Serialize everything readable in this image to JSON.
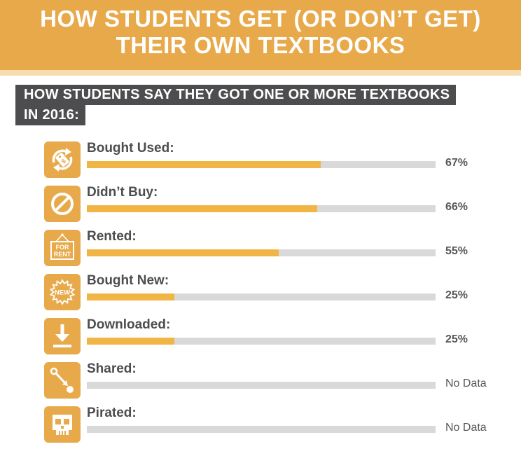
{
  "header": {
    "title_line1": "HOW STUDENTS GET (OR DON’T GET)",
    "title_line2": "THEIR OWN TEXTBOOKS"
  },
  "subheading": {
    "line1": "HOW STUDENTS SAY THEY GOT ONE OR MORE TEXTBOOKS",
    "line2": "IN 2016:"
  },
  "colors": {
    "accent": "#e8a94a",
    "bar_fill": "#f0b545",
    "bar_track": "#d9d9d9",
    "subhead_bg": "#4d4d4f"
  },
  "chart_data": {
    "type": "bar",
    "orientation": "horizontal",
    "categories": [
      "Bought Used:",
      "Didn’t Buy:",
      "Rented:",
      "Bought New:",
      "Downloaded:",
      "Shared:",
      "Pirated:"
    ],
    "values": [
      67,
      66,
      55,
      25,
      25,
      null,
      null
    ],
    "value_labels": [
      "67%",
      "66%",
      "55%",
      "25%",
      "25%",
      "No Data",
      "No Data"
    ],
    "icons": [
      "recycle-price-tag-icon",
      "prohibited-icon",
      "for-rent-sign-icon",
      "new-badge-icon",
      "download-icon",
      "share-arrow-icon",
      "skull-icon"
    ],
    "icon_texts": {
      "for_rent_top": "FOR",
      "for_rent_bottom": "RENT",
      "new_badge": "NEW"
    },
    "xlim": [
      0,
      100
    ]
  }
}
